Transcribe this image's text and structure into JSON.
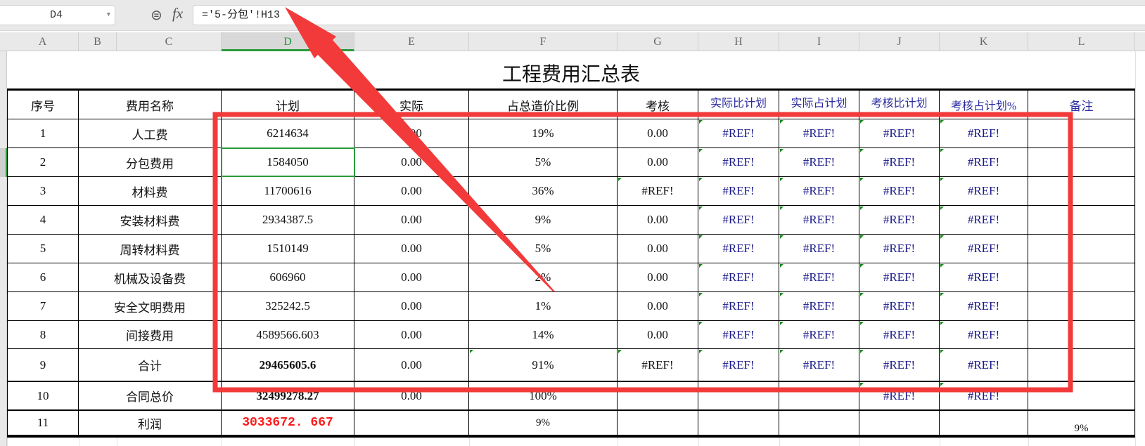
{
  "formula_bar": {
    "name_box": "D4",
    "formula": "='5-分包'!H13",
    "fx": "fx",
    "zoom_icon": "zoom-formula-icon"
  },
  "columns": [
    "A",
    "B",
    "C",
    "D",
    "E",
    "F",
    "G",
    "H",
    "I",
    "J",
    "K",
    "L"
  ],
  "selected_column": "D",
  "title": "工程费用汇总表",
  "headers": [
    "序号",
    "费用名称",
    "计划",
    "实际",
    "占总造价比例",
    "考核",
    "实际比计划",
    "实际占计划",
    "考核比计划",
    "考核占计划%",
    "备注"
  ],
  "rows": [
    [
      "1",
      "人工费",
      "6214634",
      "0.00",
      "19%",
      "0.00",
      "#REF!",
      "#REF!",
      "#REF!",
      "#REF!",
      ""
    ],
    [
      "2",
      "分包费用",
      "1584050",
      "0.00",
      "5%",
      "0.00",
      "#REF!",
      "#REF!",
      "#REF!",
      "#REF!",
      ""
    ],
    [
      "3",
      "材料费",
      "11700616",
      "0.00",
      "36%",
      "#REF!",
      "#REF!",
      "#REF!",
      "#REF!",
      "#REF!",
      ""
    ],
    [
      "4",
      "安装材料费",
      "2934387.5",
      "0.00",
      "9%",
      "0.00",
      "#REF!",
      "#REF!",
      "#REF!",
      "#REF!",
      ""
    ],
    [
      "5",
      "周转材料费",
      "1510149",
      "0.00",
      "5%",
      "0.00",
      "#REF!",
      "#REF!",
      "#REF!",
      "#REF!",
      ""
    ],
    [
      "6",
      "机械及设备费",
      "606960",
      "0.00",
      "2%",
      "0.00",
      "#REF!",
      "#REF!",
      "#REF!",
      "#REF!",
      ""
    ],
    [
      "7",
      "安全文明费用",
      "325242.5",
      "0.00",
      "1%",
      "0.00",
      "#REF!",
      "#REF!",
      "#REF!",
      "#REF!",
      ""
    ],
    [
      "8",
      "间接费用",
      "4589566.603",
      "0.00",
      "14%",
      "0.00",
      "#REF!",
      "#REF!",
      "#REF!",
      "#REF!",
      ""
    ],
    [
      "9",
      "合计",
      "29465605.6",
      "0.00",
      "91%",
      "#REF!",
      "#REF!",
      "#REF!",
      "#REF!",
      "#REF!",
      ""
    ],
    [
      "10",
      "合同总价",
      "32499278.27",
      "0.00",
      "100%",
      "",
      "",
      "",
      "#REF!",
      "#REF!",
      ""
    ],
    [
      "11",
      "利润",
      "3033672. 667",
      "",
      "9%",
      "",
      "",
      "",
      "",
      "",
      "9%"
    ]
  ],
  "colors": {
    "annotation_red": "#f23a3a",
    "ref_text": "#1a1a8a",
    "profit_red": "#ff1a1a",
    "selection_green": "#2a9a3a"
  }
}
